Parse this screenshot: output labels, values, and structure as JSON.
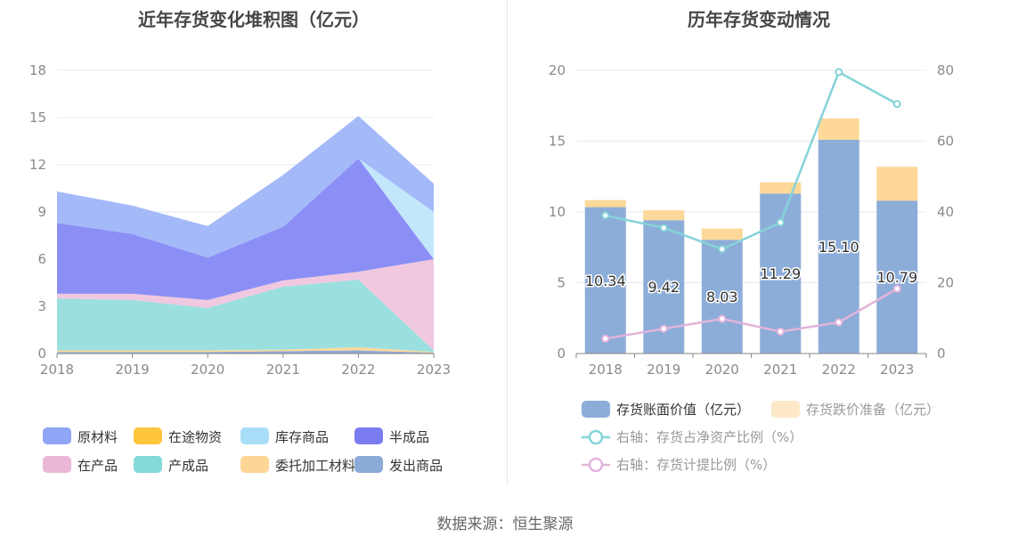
{
  "left_title": "近年存货变化堆积图（亿元）",
  "right_title": "历年存货变动情况",
  "source": "数据来源：恒生聚源",
  "chart_data": [
    {
      "type": "area",
      "title": "近年存货变化堆积图（亿元）",
      "stacked": true,
      "x": [
        "2018",
        "2019",
        "2020",
        "2021",
        "2022",
        "2023"
      ],
      "ylim": [
        0,
        18
      ],
      "yticks": [
        0,
        3,
        6,
        9,
        12,
        15,
        18
      ],
      "grid": true,
      "legend_position": "bottom",
      "series": [
        {
          "name": "发出商品",
          "color": "#8FA8D8",
          "values": [
            0.1,
            0.1,
            0.1,
            0.15,
            0.2,
            0.05
          ]
        },
        {
          "name": "委托加工材料",
          "color": "#FDD99A",
          "values": [
            0.1,
            0.1,
            0.1,
            0.1,
            0.2,
            0.05
          ]
        },
        {
          "name": "产成品",
          "color": "#9BDFDF",
          "values": [
            3.3,
            3.2,
            2.7,
            4.0,
            4.3,
            0.1
          ]
        },
        {
          "name": "在产品",
          "color": "#F0C8E0",
          "values": [
            0.3,
            0.4,
            0.5,
            0.4,
            0.5,
            5.8
          ]
        },
        {
          "name": "半成品",
          "color": "#8B8FF5",
          "values": [
            4.5,
            3.8,
            2.7,
            3.4,
            7.2,
            0.0
          ]
        },
        {
          "name": "库存商品",
          "color": "#C2E7FB",
          "values": [
            0.0,
            0.0,
            0.0,
            0.0,
            0.0,
            3.0
          ]
        },
        {
          "name": "在途物资",
          "color": "#FFC53D",
          "values": [
            0.0,
            0.0,
            0.0,
            0.0,
            0.0,
            0.0
          ]
        },
        {
          "name": "原材料",
          "color": "#A4B9F8",
          "values": [
            2.0,
            1.8,
            2.0,
            3.3,
            2.7,
            1.8
          ]
        }
      ],
      "legend_order": [
        "原材料",
        "在途物资",
        "库存商品",
        "半成品",
        "在产品",
        "产成品",
        "委托加工材料",
        "发出商品"
      ],
      "legend_colors": [
        "#8FA6F7",
        "#FFC53D",
        "#A8DDF8",
        "#7B7BF0",
        "#EBB8D8",
        "#86D9D9",
        "#FDD595",
        "#8AAAD8"
      ]
    },
    {
      "type": "bar",
      "title": "历年存货变动情况",
      "stacked": true,
      "categories": [
        "2018",
        "2019",
        "2020",
        "2021",
        "2022",
        "2023"
      ],
      "ylim": [
        0,
        20
      ],
      "yticks": [
        0,
        5,
        10,
        15,
        20
      ],
      "y2lim": [
        0,
        80
      ],
      "y2ticks": [
        0,
        20,
        40,
        60,
        80
      ],
      "grid": true,
      "legend_position": "bottom",
      "series": [
        {
          "name": "存货账面价值（亿元）",
          "color": "#8DADD9",
          "values": [
            10.34,
            9.42,
            8.03,
            11.29,
            15.1,
            10.79
          ],
          "labels": [
            "10.34",
            "9.42",
            "8.03",
            "11.29",
            "15.10",
            "10.79"
          ]
        },
        {
          "name": "存货跌价准备（亿元）",
          "color": "#FDD898",
          "legend_color": "#FDE8C8",
          "values": [
            0.5,
            0.7,
            0.8,
            0.8,
            1.5,
            2.4
          ]
        }
      ],
      "line_series": [
        {
          "name": "右轴：存货占净资产比例（%）",
          "color": "#86D3D8",
          "axis": "right",
          "values": [
            39,
            35.5,
            29.5,
            37,
            79.5,
            70.5
          ]
        },
        {
          "name": "右轴：存货计提比例（%）",
          "color": "#E3B4DB",
          "axis": "right",
          "values": [
            4.2,
            7,
            9.8,
            6.2,
            8.8,
            18.3
          ]
        }
      ]
    }
  ]
}
